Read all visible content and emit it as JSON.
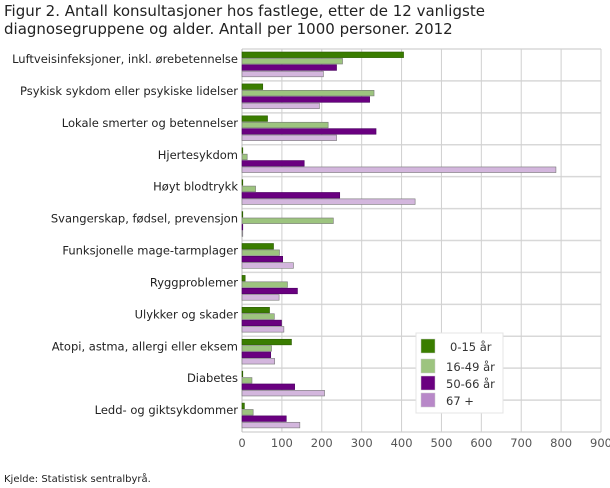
{
  "chart_data": {
    "type": "bar",
    "orientation": "horizontal",
    "title": "Figur 2. Antall konsultasjoner hos fastlege, etter de 12 vanligste diagnosegruppene og alder. Antall per 1000 personer. 2012",
    "categories": [
      "Luftveisinfeksjoner, inkl. ørebetennelse",
      "Psykisk sykdom eller psykiske lidelser",
      "Lokale smerter og betennelser",
      "Hjertesykdom",
      "Høyt blodtrykk",
      "Svangerskap, fødsel, prevensjon",
      "Funksjonelle mage-tarmplager",
      "Ryggproblemer",
      "Ulykker og skader",
      "Atopi, astma, allergi eller eksem",
      "Diabetes",
      "Ledd- og giktsykdommer"
    ],
    "series": [
      {
        "name": "0-15 år",
        "color": "#3a7d00",
        "values": [
          405,
          52,
          64,
          2,
          1,
          2,
          79,
          8,
          69,
          124,
          1,
          6
        ]
      },
      {
        "name": "16-49 år",
        "color": "#9dc47f",
        "values": [
          252,
          331,
          216,
          13,
          34,
          229,
          94,
          114,
          81,
          74,
          25,
          28
        ]
      },
      {
        "name": "50-66 år",
        "color": "#6a0080",
        "values": [
          237,
          320,
          336,
          156,
          245,
          1,
          102,
          139,
          99,
          72,
          132,
          111
        ]
      },
      {
        "name": "67 +",
        "color": "#d3b6dd",
        "values": [
          204,
          194,
          237,
          787,
          434,
          1,
          129,
          93,
          105,
          82,
          207,
          145
        ]
      }
    ],
    "xlim": [
      0,
      900
    ],
    "xticks": [
      0,
      100,
      200,
      300,
      400,
      500,
      600,
      700,
      800,
      900
    ],
    "grid": true,
    "legend": "bottom-right",
    "legend_swatch_colors": [
      "#3a7d00",
      "#9dc47f",
      "#6a0080",
      "#b888c8"
    ]
  },
  "source": "Kjelde: Statistisk sentralbyrå."
}
